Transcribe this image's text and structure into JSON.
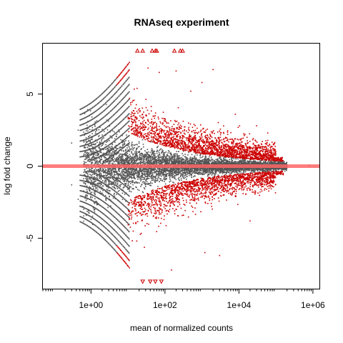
{
  "chart_data": {
    "type": "scatter",
    "title": "RNAseq experiment",
    "xlabel": "mean of normalized counts",
    "ylabel": "log fold change",
    "x_scale": "log10",
    "xlim": [
      0.05,
      1500000
    ],
    "ylim": [
      -8.5,
      8.5
    ],
    "x_ticks": [
      1,
      100,
      10000,
      1000000
    ],
    "x_tick_labels": [
      "1e+00",
      "1e+02",
      "1e+04",
      "1e+06"
    ],
    "y_ticks": [
      -5,
      0,
      5
    ],
    "y_tick_labels": [
      "-5",
      "0",
      "5"
    ],
    "grid": false,
    "legend": "none",
    "reference_line": {
      "y": 0,
      "color": "#ff6666"
    },
    "colors": {
      "significant": "#cc0000",
      "not_significant": "#555555",
      "clipped_marker": "#cc0000"
    },
    "clip_limit": 8,
    "clipped_points": {
      "top": [
        18,
        25,
        45,
        55,
        60,
        180,
        260,
        300
      ],
      "bottom": [
        25,
        40,
        55,
        80
      ]
    },
    "outlier_points": [
      {
        "x": 0.3,
        "y": 1.6,
        "significant": false
      },
      {
        "x": 0.3,
        "y": -1.3,
        "significant": false
      },
      {
        "x": 0.45,
        "y": 2.5,
        "significant": false
      },
      {
        "x": 0.45,
        "y": -2.3,
        "significant": false
      },
      {
        "x": 0.6,
        "y": 2.9,
        "significant": false
      },
      {
        "x": 0.6,
        "y": -2.8,
        "significant": false
      },
      {
        "x": 1.0,
        "y": 3.6,
        "significant": false
      },
      {
        "x": 1.0,
        "y": -3.7,
        "significant": false
      },
      {
        "x": 35,
        "y": 6.8,
        "significant": true
      },
      {
        "x": 70,
        "y": 6.5,
        "significant": true
      },
      {
        "x": 200,
        "y": 6.6,
        "significant": true
      },
      {
        "x": 1000,
        "y": 5.8,
        "significant": true
      },
      {
        "x": 2000,
        "y": 6.7,
        "significant": true
      },
      {
        "x": 3000,
        "y": -6.2,
        "significant": true
      },
      {
        "x": 1200,
        "y": -6.0,
        "significant": true
      },
      {
        "x": 150,
        "y": -7.2,
        "significant": true
      },
      {
        "x": 500,
        "y": 5.2,
        "significant": true
      },
      {
        "x": 8000,
        "y": 3.6,
        "significant": true
      },
      {
        "x": 30000,
        "y": 2.8,
        "significant": true
      },
      {
        "x": 60000,
        "y": 2.3,
        "significant": true
      },
      {
        "x": 20000,
        "y": -3.8,
        "significant": true
      },
      {
        "x": 800000,
        "y": 0.05,
        "significant": false
      }
    ]
  }
}
